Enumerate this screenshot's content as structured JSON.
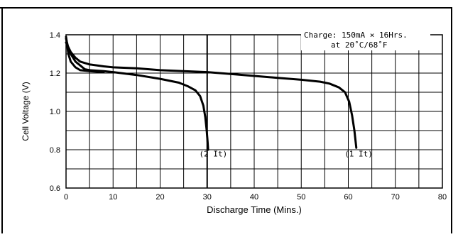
{
  "chart_data": {
    "type": "line",
    "title": "",
    "xlabel": "Discharge Time (Mins.)",
    "ylabel": "Cell Voltage (V)",
    "xlim": [
      0,
      80
    ],
    "ylim": [
      0.6,
      1.4
    ],
    "x_ticks": [
      "0",
      "10",
      "20",
      "30",
      "40",
      "50",
      "60",
      "70",
      "80"
    ],
    "y_ticks": [
      "0.6",
      "0.8",
      "1.0",
      "1.2",
      "1.4"
    ],
    "grid": true,
    "annotation": {
      "line1": "Charge:  150mA × 16Hrs.",
      "line2": "at 20˚C/68˚F"
    },
    "series": [
      {
        "name": "(2It)",
        "points": [
          [
            0,
            1.38
          ],
          [
            0.5,
            1.33
          ],
          [
            1,
            1.3
          ],
          [
            2,
            1.26
          ],
          [
            3,
            1.24
          ],
          [
            4,
            1.22
          ],
          [
            5,
            1.215
          ],
          [
            8,
            1.21
          ],
          [
            10,
            1.205
          ],
          [
            15,
            1.19
          ],
          [
            20,
            1.17
          ],
          [
            24,
            1.15
          ],
          [
            26,
            1.13
          ],
          [
            27.5,
            1.11
          ],
          [
            28.5,
            1.08
          ],
          [
            29.2,
            1.03
          ],
          [
            29.6,
            0.97
          ],
          [
            29.9,
            0.9
          ],
          [
            30.1,
            0.84
          ],
          [
            30.2,
            0.8
          ]
        ]
      },
      {
        "name": "(1It)",
        "points": [
          [
            0,
            1.36
          ],
          [
            1,
            1.31
          ],
          [
            2,
            1.28
          ],
          [
            3,
            1.26
          ],
          [
            5,
            1.245
          ],
          [
            8,
            1.235
          ],
          [
            10,
            1.23
          ],
          [
            15,
            1.225
          ],
          [
            20,
            1.215
          ],
          [
            25,
            1.21
          ],
          [
            30,
            1.205
          ],
          [
            35,
            1.195
          ],
          [
            40,
            1.185
          ],
          [
            45,
            1.175
          ],
          [
            50,
            1.165
          ],
          [
            54,
            1.155
          ],
          [
            56,
            1.145
          ],
          [
            58,
            1.125
          ],
          [
            59.3,
            1.1
          ],
          [
            60.2,
            1.05
          ],
          [
            60.8,
            0.98
          ],
          [
            61.3,
            0.9
          ],
          [
            61.7,
            0.81
          ]
        ]
      },
      {
        "name": "",
        "points": [
          [
            0,
            1.39
          ],
          [
            0.5,
            1.3
          ],
          [
            1,
            1.26
          ],
          [
            2,
            1.23
          ],
          [
            3,
            1.215
          ],
          [
            5,
            1.21
          ],
          [
            8,
            1.205
          ]
        ]
      }
    ],
    "series_labels": [
      {
        "text": "(2 It)",
        "x": 28.3,
        "y": 0.765
      },
      {
        "text": "(1 It)",
        "x": 59.2,
        "y": 0.765
      }
    ]
  }
}
